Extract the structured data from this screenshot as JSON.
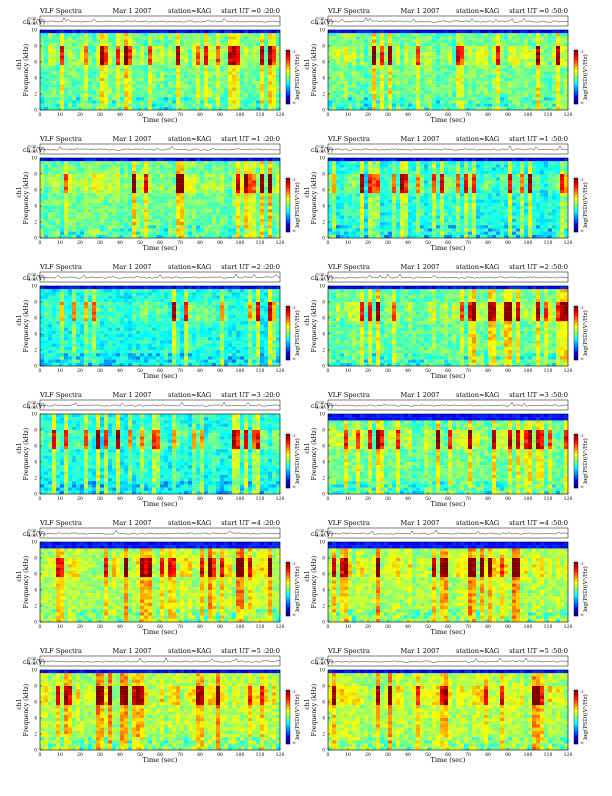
{
  "chart_data": [
    {
      "type": "heatmap",
      "title": "VLF Spectra",
      "date": "Mar 1 2007",
      "station": "station=KAG",
      "start": "start  UT =0 :20:0",
      "trace_label": "ch 1(V)",
      "trace_ticks": [
        "0.00",
        "-0.00"
      ],
      "ylabel": "Frequency  (kHz)",
      "ylabel_prefix": "ch1",
      "xlabel": "Time (sec)",
      "x_ticks": [
        0,
        10,
        20,
        30,
        40,
        50,
        60,
        70,
        80,
        90,
        100,
        110,
        120
      ],
      "y_ticks": [
        0,
        2,
        4,
        6,
        8,
        10
      ],
      "xlim": [
        0,
        120
      ],
      "ylim": [
        0,
        10
      ],
      "colorbar_label": "log(PSD)(V²/Hz)",
      "colorbar_ticks": [
        "-3",
        "-6"
      ],
      "band_top_khz": 9.5,
      "activity": "medium",
      "seed": 11
    },
    {
      "type": "heatmap",
      "title": "VLF Spectra",
      "date": "Mar 1 2007",
      "station": "station=KAG",
      "start": "start  UT =0 :50:0",
      "trace_label": "ch 1(V)",
      "trace_ticks": [
        "0.00",
        "-0.00"
      ],
      "ylabel": "Frequency  (kHz)",
      "ylabel_prefix": "ch1",
      "xlabel": "Time (sec)",
      "x_ticks": [
        0,
        10,
        20,
        30,
        40,
        50,
        60,
        70,
        80,
        90,
        100,
        110,
        120
      ],
      "y_ticks": [
        0,
        2,
        4,
        6,
        8,
        10
      ],
      "xlim": [
        0,
        120
      ],
      "ylim": [
        0,
        10
      ],
      "colorbar_label": "log(PSD)(V²/Hz)",
      "colorbar_ticks": [
        "-3",
        "-6"
      ],
      "band_top_khz": 9.5,
      "activity": "medium",
      "seed": 23
    },
    {
      "type": "heatmap",
      "title": "VLF Spectra",
      "date": "Mar 1 2007",
      "station": "station=KAG",
      "start": "start  UT =1 :20:0",
      "trace_label": "ch 1(V)",
      "trace_ticks": [
        "0.00",
        "-0.00"
      ],
      "ylabel": "Frequency  (kHz)",
      "ylabel_prefix": "ch1",
      "xlabel": "Time (sec)",
      "x_ticks": [
        0,
        10,
        20,
        30,
        40,
        50,
        60,
        70,
        80,
        90,
        100,
        110,
        120
      ],
      "y_ticks": [
        0,
        2,
        4,
        6,
        8,
        10
      ],
      "xlim": [
        0,
        120
      ],
      "ylim": [
        0,
        10
      ],
      "colorbar_label": "log(PSD)(V²/Hz)",
      "colorbar_ticks": [
        "-3",
        "-6"
      ],
      "band_top_khz": 9.5,
      "activity": "medium",
      "seed": 37
    },
    {
      "type": "heatmap",
      "title": "VLF Spectra",
      "date": "Mar 1 2007",
      "station": "station=KAG",
      "start": "start  UT =1 :50:0",
      "trace_label": "ch 1(V)",
      "trace_ticks": [
        "0.00",
        "-0.00"
      ],
      "ylabel": "Frequency  (kHz)",
      "ylabel_prefix": "ch1",
      "xlabel": "Time (sec)",
      "x_ticks": [
        0,
        10,
        20,
        30,
        40,
        50,
        60,
        70,
        80,
        90,
        100,
        110,
        120
      ],
      "y_ticks": [
        0,
        2,
        4,
        6,
        8,
        10
      ],
      "xlim": [
        0,
        120
      ],
      "ylim": [
        0,
        10
      ],
      "colorbar_label": "log(PSD)(V²/Hz)",
      "colorbar_ticks": [
        "-3",
        "-6"
      ],
      "band_top_khz": 9.5,
      "activity": "low",
      "seed": 41
    },
    {
      "type": "heatmap",
      "title": "VLF Spectra",
      "date": "Mar 1 2007",
      "station": "station=KAG",
      "start": "start  UT =2 :20:0",
      "trace_label": "ch 1(V)",
      "trace_ticks": [
        "0.00",
        "-0.00"
      ],
      "ylabel": "Frequency  (kHz)",
      "ylabel_prefix": "ch1",
      "xlabel": "Time (sec)",
      "x_ticks": [
        0,
        10,
        20,
        30,
        40,
        50,
        60,
        70,
        80,
        90,
        100,
        110,
        120
      ],
      "y_ticks": [
        0,
        2,
        4,
        6,
        8,
        10
      ],
      "xlim": [
        0,
        120
      ],
      "ylim": [
        0,
        10
      ],
      "colorbar_label": "log(PSD)(V²/Hz)",
      "colorbar_ticks": [
        "-3",
        "-6"
      ],
      "band_top_khz": 9.5,
      "activity": "low",
      "seed": 53
    },
    {
      "type": "heatmap",
      "title": "VLF Spectra",
      "date": "Mar 1 2007",
      "station": "station=KAG",
      "start": "start  UT =2 :50:0",
      "trace_label": "ch 1(V)",
      "trace_ticks": [
        "0.00",
        "-0.00"
      ],
      "ylabel": "Frequency  (kHz)",
      "ylabel_prefix": "ch1",
      "xlabel": "Time (sec)",
      "x_ticks": [
        0,
        10,
        20,
        30,
        40,
        50,
        60,
        70,
        80,
        90,
        100,
        110,
        120
      ],
      "y_ticks": [
        0,
        2,
        4,
        6,
        8,
        10
      ],
      "xlim": [
        0,
        120
      ],
      "ylim": [
        0,
        10
      ],
      "colorbar_label": "log(PSD)(V²/Hz)",
      "colorbar_ticks": [
        "-3",
        "-6"
      ],
      "band_top_khz": 9.5,
      "activity": "medium",
      "seed": 67
    },
    {
      "type": "heatmap",
      "title": "VLF Spectra",
      "date": "Mar 1 2007",
      "station": "station=KAG",
      "start": "start  UT =3 :20:0",
      "trace_label": "ch 1(V)",
      "trace_ticks": [
        "0.00",
        "-0.00"
      ],
      "ylabel": "Frequency  (kHz)",
      "ylabel_prefix": "ch1",
      "xlabel": "Time (sec)",
      "x_ticks": [
        0,
        10,
        20,
        30,
        40,
        50,
        60,
        70,
        80,
        90,
        100,
        110,
        120
      ],
      "y_ticks": [
        0,
        2,
        4,
        6,
        8,
        10
      ],
      "xlim": [
        0,
        120
      ],
      "ylim": [
        0,
        10
      ],
      "colorbar_label": "log(PSD)(V²/Hz)",
      "colorbar_ticks": [
        "-3",
        "-6"
      ],
      "band_top_khz": 10,
      "activity": "low",
      "seed": 71
    },
    {
      "type": "heatmap",
      "title": "VLF Spectra",
      "date": "Mar 1 2007",
      "station": "station=KAG",
      "start": "start  UT =3 :50:0",
      "trace_label": "ch 1(V)",
      "trace_ticks": [
        "0.00",
        "-0.00"
      ],
      "ylabel": "Frequency  (kHz)",
      "ylabel_prefix": "ch1",
      "xlabel": "Time (sec)",
      "x_ticks": [
        0,
        10,
        20,
        30,
        40,
        50,
        60,
        70,
        80,
        90,
        100,
        110,
        120
      ],
      "y_ticks": [
        0,
        2,
        4,
        6,
        8,
        10
      ],
      "xlim": [
        0,
        120
      ],
      "ylim": [
        0,
        10
      ],
      "colorbar_label": "log(PSD)(V²/Hz)",
      "colorbar_ticks": [
        "-3",
        "-6"
      ],
      "band_top_khz": 9.0,
      "activity": "medium",
      "seed": 83
    },
    {
      "type": "heatmap",
      "title": "VLF Spectra",
      "date": "Mar 1 2007",
      "station": "station=KAG",
      "start": "start  UT =4 :20:0",
      "trace_label": "ch 1(V)",
      "trace_ticks": [
        "0.00",
        "-0.00"
      ],
      "ylabel": "Frequency  (kHz)",
      "ylabel_prefix": "ch1",
      "xlabel": "Time (sec)",
      "x_ticks": [
        0,
        10,
        20,
        30,
        40,
        50,
        60,
        70,
        80,
        90,
        100,
        110,
        120
      ],
      "y_ticks": [
        0,
        2,
        4,
        6,
        8,
        10
      ],
      "xlim": [
        0,
        120
      ],
      "ylim": [
        0,
        10
      ],
      "colorbar_label": "log(PSD)(V²/Hz)",
      "colorbar_ticks": [
        "-3",
        "-6"
      ],
      "band_top_khz": 9.0,
      "activity": "high",
      "seed": 97
    },
    {
      "type": "heatmap",
      "title": "VLF Spectra",
      "date": "Mar 1 2007",
      "station": "station=KAG",
      "start": "start  UT =4 :50:0",
      "trace_label": "ch 1(V)",
      "trace_ticks": [
        "0.00",
        "-0.00"
      ],
      "ylabel": "Frequency  (kHz)",
      "ylabel_prefix": "ch1",
      "xlabel": "Time (sec)",
      "x_ticks": [
        0,
        10,
        20,
        30,
        40,
        50,
        60,
        70,
        80,
        90,
        100,
        110,
        120
      ],
      "y_ticks": [
        0,
        2,
        4,
        6,
        8,
        10
      ],
      "xlim": [
        0,
        120
      ],
      "ylim": [
        0,
        10
      ],
      "colorbar_label": "log(PSD)(V²/Hz)",
      "colorbar_ticks": [
        "-3",
        "-6"
      ],
      "band_top_khz": 9.0,
      "activity": "high",
      "seed": 101
    },
    {
      "type": "heatmap",
      "title": "VLF Spectra",
      "date": "Mar 1 2007",
      "station": "station=KAG",
      "start": "start  UT =5 :20:0",
      "trace_label": "ch 1(V)",
      "trace_ticks": [
        "0.00",
        "-0.00"
      ],
      "ylabel": "Frequency  (kHz)",
      "ylabel_prefix": "ch1",
      "xlabel": "Time (sec)",
      "x_ticks": [
        0,
        10,
        20,
        30,
        40,
        50,
        60,
        70,
        80,
        90,
        100,
        110,
        120
      ],
      "y_ticks": [
        0,
        2,
        4,
        6,
        8,
        10
      ],
      "xlim": [
        0,
        120
      ],
      "ylim": [
        0,
        10
      ],
      "colorbar_label": "log(PSD)(V²/Hz)",
      "colorbar_ticks": [
        "-3",
        "-6"
      ],
      "band_top_khz": 9.5,
      "activity": "high",
      "seed": 113
    },
    {
      "type": "heatmap",
      "title": "VLF Spectra",
      "date": "Mar 1 2007",
      "station": "station=KAG",
      "start": "start  UT =5 :50:0",
      "trace_label": "ch 1(V)",
      "trace_ticks": [
        "0.00",
        "-0.00"
      ],
      "ylabel": "Frequency  (kHz)",
      "ylabel_prefix": "ch1",
      "xlabel": "Time (sec)",
      "x_ticks": [
        0,
        10,
        20,
        30,
        40,
        50,
        60,
        70,
        80,
        90,
        100,
        110,
        120
      ],
      "y_ticks": [
        0,
        2,
        4,
        6,
        8,
        10
      ],
      "xlim": [
        0,
        120
      ],
      "ylim": [
        0,
        10
      ],
      "colorbar_label": "log(PSD)(V²/Hz)",
      "colorbar_ticks": [
        "-3",
        "-6"
      ],
      "band_top_khz": 9.5,
      "activity": "high",
      "seed": 127
    }
  ]
}
